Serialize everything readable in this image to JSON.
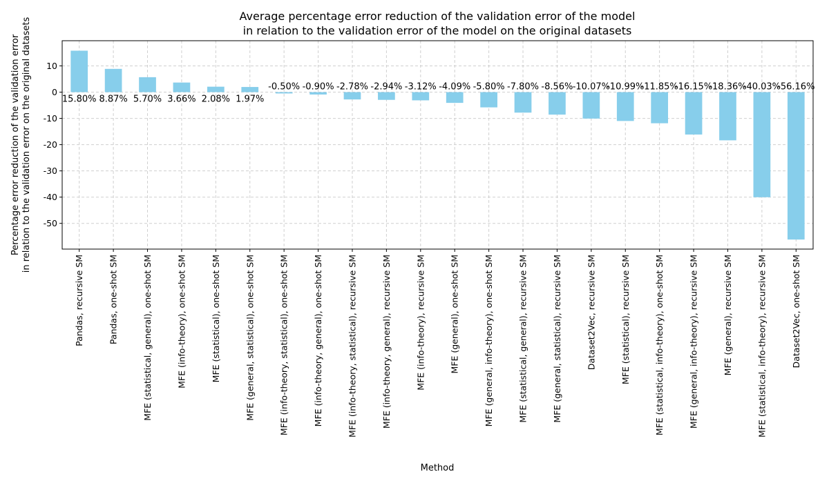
{
  "chart_data": {
    "type": "bar",
    "title_lines": [
      "Average percentage error reduction of the validation error of the model",
      "in relation to the validation error of the model on the original datasets"
    ],
    "xlabel": "Method",
    "ylabel_lines": [
      "Percentage error reduction of the validation error",
      "in relation to the validation error on the original datasets"
    ],
    "categories": [
      "Pandas, recursive SM",
      "Pandas, one-shot SM",
      "MFE (statistical, general), one-shot SM",
      "MFE (info-theory), one-shot SM",
      "MFE (statistical), one-shot SM",
      "MFE (general, statistical), one-shot SM",
      "MFE (info-theory, statistical), one-shot SM",
      "MFE (info-theory, general), one-shot SM",
      "MFE (info-theory, statistical), recursive SM",
      "MFE (info-theory, general), recursive SM",
      "MFE (info-theory), recursive SM",
      "MFE (general), one-shot SM",
      "MFE (general, info-theory), one-shot SM",
      "MFE (statistical, general), recursive SM",
      "MFE (general, statistical), recursive SM",
      "Dataset2Vec, recursive SM",
      "MFE (statistical), recursive SM",
      "MFE (statistical, info-theory), one-shot SM",
      "MFE (general, info-theory), recursive SM",
      "MFE (general), recursive SM",
      "MFE (statistical, info-theory), recursive SM",
      "Dataset2Vec, one-shot SM"
    ],
    "values": [
      15.8,
      8.87,
      5.7,
      3.66,
      2.08,
      1.97,
      -0.5,
      -0.9,
      -2.78,
      -2.94,
      -3.12,
      -4.09,
      -5.8,
      -7.8,
      -8.56,
      -10.07,
      -10.99,
      -11.85,
      -16.15,
      -18.36,
      -40.03,
      -56.16
    ],
    "data_labels": [
      "15.80%",
      "8.87%",
      "5.70%",
      "3.66%",
      "2.08%",
      "1.97%",
      "-0.50%",
      "-0.90%",
      "-2.78%",
      "-2.94%",
      "-3.12%",
      "-4.09%",
      "-5.80%",
      "-7.80%",
      "-8.56%",
      "-10.07%",
      "-10.99%",
      "-11.85%",
      "-16.15%",
      "-18.36%",
      "-40.03%",
      "-56.16%"
    ],
    "yticks": [
      10,
      0,
      -10,
      -20,
      -30,
      -40,
      -50
    ],
    "ylim": [
      -59.8,
      19.6
    ],
    "grid": true,
    "legend": "none",
    "colors": {
      "bar": "#87ceeb",
      "grid": "#cfcfcf",
      "axis": "#000000"
    }
  }
}
